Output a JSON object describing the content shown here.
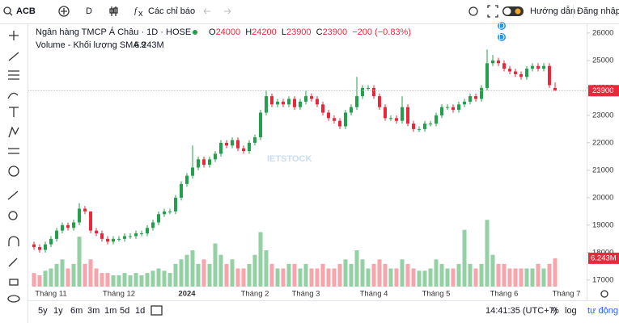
{
  "toolbar": {
    "symbol": "ACB",
    "interval": "D",
    "indicators": "Các chỉ báo",
    "guide": "Hướng dẫn",
    "login": "Đăng nhập"
  },
  "legend": {
    "title": "Ngân hàng TMCP Á Châu · 1D · HOSE",
    "o": "O",
    "h": "H",
    "l": "L",
    "c": "C",
    "change_label": "−200 (−0.83%)",
    "volume_title": "Volume - Khối lượng SMA 9",
    "volume_label": "6.243M"
  },
  "events": [
    "D",
    "D"
  ],
  "watermark": "IETSTOCK",
  "bottom": {
    "ranges": [
      "5y",
      "1y",
      "6m",
      "3m",
      "1m",
      "5d",
      "1d"
    ],
    "time": "14:41:35 (UTC+7)",
    "percent": "%",
    "log": "log",
    "auto": "tự động"
  },
  "chart_data": {
    "type": "candlestick",
    "grid": false,
    "up_color": "#22a04b",
    "down_color": "#e8283b",
    "up_volume_color": "#93d0a3",
    "down_volume_color": "#f5a5ab",
    "ylim": [
      16760,
      26380
    ],
    "yticks": [
      17000,
      18000,
      19000,
      20000,
      21000,
      22000,
      23000,
      24000,
      25000,
      26000
    ],
    "vlim": [
      0,
      16
    ],
    "categories": [
      null,
      null,
      null,
      "Tháng 11",
      null,
      null,
      null,
      null,
      null,
      null,
      null,
      null,
      null,
      null,
      null,
      "Tháng 12",
      null,
      null,
      null,
      null,
      null,
      null,
      null,
      null,
      null,
      null,
      null,
      "2024",
      null,
      null,
      null,
      null,
      null,
      null,
      null,
      null,
      null,
      null,
      null,
      "Tháng 2",
      null,
      null,
      null,
      null,
      null,
      null,
      null,
      null,
      "Tháng 3",
      null,
      null,
      null,
      null,
      null,
      null,
      null,
      null,
      null,
      null,
      null,
      "Tháng 4",
      null,
      null,
      null,
      null,
      null,
      null,
      null,
      null,
      null,
      null,
      "Tháng 5",
      null,
      null,
      null,
      null,
      null,
      null,
      null,
      null,
      null,
      null,
      null,
      "Tháng 6",
      null,
      null,
      null,
      null,
      null,
      null,
      null,
      null,
      null,
      null,
      "Tháng 7"
    ],
    "ohlc": [
      [
        18300,
        18400,
        18100,
        18200
      ],
      [
        18200,
        18300,
        18000,
        18100
      ],
      [
        18100,
        18400,
        18000,
        18300
      ],
      [
        18300,
        18600,
        18200,
        18500
      ],
      [
        18500,
        18900,
        18400,
        18800
      ],
      [
        18800,
        19100,
        18700,
        19000
      ],
      [
        19000,
        19100,
        18800,
        18900
      ],
      [
        18900,
        19200,
        18800,
        19100
      ],
      [
        19100,
        19800,
        19000,
        19600
      ],
      [
        19600,
        19700,
        19400,
        19500
      ],
      [
        19500,
        19500,
        18700,
        18800
      ],
      [
        18800,
        18900,
        18600,
        18700
      ],
      [
        18700,
        18800,
        18400,
        18500
      ],
      [
        18500,
        18600,
        18300,
        18400
      ],
      [
        18400,
        18600,
        18300,
        18500
      ],
      [
        18500,
        18600,
        18400,
        18500
      ],
      [
        18500,
        18700,
        18400,
        18600
      ],
      [
        18600,
        18700,
        18500,
        18600
      ],
      [
        18600,
        18800,
        18500,
        18700
      ],
      [
        18700,
        18800,
        18600,
        18700
      ],
      [
        18700,
        19000,
        18600,
        18900
      ],
      [
        18900,
        19200,
        18800,
        19100
      ],
      [
        19100,
        19500,
        19000,
        19400
      ],
      [
        19400,
        19600,
        19300,
        19500
      ],
      [
        19500,
        19600,
        19400,
        19500
      ],
      [
        19500,
        20100,
        19400,
        20000
      ],
      [
        20000,
        20600,
        19900,
        20500
      ],
      [
        20500,
        20900,
        20400,
        20800
      ],
      [
        20800,
        21900,
        20700,
        21100
      ],
      [
        21100,
        21500,
        21000,
        21400
      ],
      [
        21400,
        21500,
        21100,
        21200
      ],
      [
        21200,
        21500,
        21100,
        21400
      ],
      [
        21400,
        21700,
        21300,
        21600
      ],
      [
        21600,
        22100,
        21500,
        22000
      ],
      [
        22000,
        22100,
        21800,
        21900
      ],
      [
        21900,
        22200,
        21800,
        22100
      ],
      [
        22100,
        22200,
        21700,
        21800
      ],
      [
        21800,
        21900,
        21600,
        21700
      ],
      [
        21700,
        22100,
        21600,
        22000
      ],
      [
        22000,
        22300,
        21900,
        22200
      ],
      [
        22200,
        23200,
        22100,
        23100
      ],
      [
        23100,
        23900,
        23000,
        23700
      ],
      [
        23700,
        23800,
        23300,
        23400
      ],
      [
        23400,
        23600,
        23300,
        23500
      ],
      [
        23500,
        23600,
        23300,
        23400
      ],
      [
        23400,
        23700,
        23300,
        23600
      ],
      [
        23600,
        23700,
        23200,
        23300
      ],
      [
        23300,
        23600,
        23200,
        23500
      ],
      [
        23500,
        23900,
        23400,
        23700
      ],
      [
        23700,
        23800,
        23500,
        23600
      ],
      [
        23600,
        23700,
        23300,
        23400
      ],
      [
        23400,
        23500,
        23000,
        23100
      ],
      [
        23100,
        23200,
        22800,
        22900
      ],
      [
        22900,
        23000,
        22700,
        22800
      ],
      [
        22800,
        22900,
        22500,
        22600
      ],
      [
        22600,
        23200,
        22500,
        23100
      ],
      [
        23100,
        23400,
        23000,
        23300
      ],
      [
        23300,
        24400,
        23200,
        23700
      ],
      [
        23700,
        24100,
        23600,
        24000
      ],
      [
        24000,
        24100,
        23900,
        24000
      ],
      [
        24000,
        24100,
        23600,
        23700
      ],
      [
        23700,
        23800,
        23200,
        23300
      ],
      [
        23300,
        23400,
        22800,
        22900
      ],
      [
        22900,
        23000,
        22800,
        22900
      ],
      [
        22900,
        23000,
        22700,
        22800
      ],
      [
        22800,
        23700,
        22700,
        23300
      ],
      [
        23300,
        23400,
        22600,
        22700
      ],
      [
        22700,
        22800,
        22400,
        22500
      ],
      [
        22500,
        22600,
        22400,
        22500
      ],
      [
        22500,
        22800,
        22400,
        22700
      ],
      [
        22700,
        22800,
        22600,
        22700
      ],
      [
        22700,
        23100,
        22600,
        23000
      ],
      [
        23000,
        23400,
        22900,
        23300
      ],
      [
        23300,
        23400,
        23200,
        23300
      ],
      [
        23300,
        23400,
        23100,
        23200
      ],
      [
        23200,
        23500,
        23100,
        23400
      ],
      [
        23400,
        23600,
        23300,
        23500
      ],
      [
        23500,
        23800,
        23400,
        23700
      ],
      [
        23700,
        23800,
        23500,
        23600
      ],
      [
        23600,
        24100,
        23500,
        24000
      ],
      [
        24000,
        25400,
        23900,
        24900
      ],
      [
        24900,
        25200,
        24800,
        25000
      ],
      [
        25000,
        25100,
        24800,
        24900
      ],
      [
        24900,
        25000,
        24600,
        24700
      ],
      [
        24700,
        24800,
        24500,
        24600
      ],
      [
        24600,
        24700,
        24400,
        24500
      ],
      [
        24500,
        24600,
        24300,
        24400
      ],
      [
        24400,
        24800,
        24300,
        24700
      ],
      [
        24700,
        24900,
        24600,
        24800
      ],
      [
        24800,
        24900,
        24600,
        24700
      ],
      [
        24700,
        24900,
        24600,
        24800
      ],
      [
        24800,
        24900,
        24000,
        24100
      ],
      [
        24000,
        24200,
        23900,
        23900
      ],
      null,
      null
    ],
    "volume": [
      3,
      2.5,
      3.5,
      4,
      5,
      6,
      4,
      5,
      11,
      5,
      6,
      4,
      3,
      3,
      2.5,
      2.5,
      3,
      2.5,
      3,
      2.5,
      3,
      3.5,
      4,
      3.5,
      3,
      5,
      6,
      7,
      8,
      5,
      6,
      5,
      9.5,
      7,
      5,
      6,
      4,
      4,
      5,
      7,
      12,
      8,
      5,
      4,
      4,
      5,
      5,
      4,
      5,
      4,
      4,
      5,
      4,
      4,
      5,
      6,
      5,
      8,
      6,
      4,
      5,
      6,
      5,
      4,
      4,
      6,
      5,
      4,
      3.5,
      3.5,
      4,
      6,
      5,
      4,
      4,
      5,
      12.5,
      5,
      4,
      5,
      14.7,
      7,
      5,
      5,
      4,
      4,
      4,
      4,
      4,
      5,
      4,
      5,
      6.243,
      null,
      null
    ]
  }
}
